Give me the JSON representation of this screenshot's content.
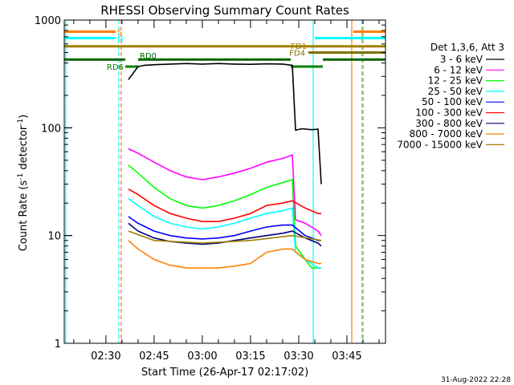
{
  "chart_data": {
    "type": "line",
    "title": "RHESSI Observing Summary Count Rates",
    "xlabel": "Start Time (26-Apr-17 02:17:02)",
    "ylabel_main": "Count Rate (s",
    "ylabel_sup1": "-1",
    "ylabel_mid": " detector",
    "ylabel_sup2": "-1",
    "ylabel_end": ")",
    "yscale": "log",
    "ylim": [
      1,
      1000
    ],
    "xlim": [
      "02:17:02",
      "03:57:00"
    ],
    "xticks": [
      "02:30",
      "02:45",
      "03:00",
      "03:15",
      "03:30",
      "03:45"
    ],
    "yticks": [
      "1",
      "10",
      "100",
      "1000"
    ],
    "legend_title": "Det 1,3,6, Att 3",
    "legend_placement": "right",
    "footer": "31-Aug-2022 22:28",
    "series": [
      {
        "name": "3 - 6 keV",
        "color": "#000000",
        "t": [
          "02:37",
          "02:40",
          "02:42",
          "02:45",
          "02:50",
          "02:55",
          "03:00",
          "03:05",
          "03:10",
          "03:15",
          "03:20",
          "03:25",
          "03:28",
          "03:29",
          "03:31",
          "03:34",
          "03:36",
          "03:37"
        ],
        "values": [
          280,
          370,
          380,
          385,
          390,
          395,
          390,
          395,
          390,
          388,
          392,
          390,
          380,
          95,
          98,
          96,
          97,
          30
        ]
      },
      {
        "name": "6 - 12 keV",
        "color": "#ff00ff",
        "t": [
          "02:37",
          "02:40",
          "02:45",
          "02:50",
          "02:55",
          "03:00",
          "03:05",
          "03:10",
          "03:15",
          "03:20",
          "03:25",
          "03:28",
          "03:29",
          "03:32",
          "03:34",
          "03:36",
          "03:37"
        ],
        "values": [
          64,
          58,
          48,
          40,
          35,
          33,
          35,
          38,
          42,
          48,
          52,
          56,
          14,
          13,
          12,
          11,
          10
        ]
      },
      {
        "name": "12 - 25 keV",
        "color": "#00ff00",
        "t": [
          "02:37",
          "02:40",
          "02:45",
          "02:50",
          "02:55",
          "03:00",
          "03:05",
          "03:10",
          "03:15",
          "03:20",
          "03:25",
          "03:28",
          "03:29",
          "03:32",
          "03:34",
          "03:36",
          "03:37"
        ],
        "values": [
          45,
          38,
          28,
          22,
          19,
          18,
          19,
          21,
          24,
          28,
          31,
          33,
          8,
          6,
          5,
          5,
          5
        ]
      },
      {
        "name": "25 - 50 keV",
        "color": "#00ffff",
        "t": [
          "02:37",
          "02:40",
          "02:45",
          "02:50",
          "02:55",
          "03:00",
          "03:05",
          "03:10",
          "03:15",
          "03:20",
          "03:25",
          "03:28",
          "03:29",
          "03:32",
          "03:34",
          "03:36",
          "03:37"
        ],
        "values": [
          22,
          19,
          15,
          13,
          12,
          11.5,
          12,
          13,
          14.5,
          16,
          17,
          18,
          7,
          6,
          5.5,
          5,
          5
        ]
      },
      {
        "name": "50 - 100 keV",
        "color": "#0000ff",
        "t": [
          "02:37",
          "02:40",
          "02:45",
          "02:50",
          "02:55",
          "03:00",
          "03:05",
          "03:10",
          "03:15",
          "03:20",
          "03:25",
          "03:28",
          "03:32",
          "03:36",
          "03:37"
        ],
        "values": [
          15,
          13,
          11,
          10,
          9.5,
          9.3,
          9.5,
          10,
          11,
          12,
          12.5,
          12.5,
          10,
          9,
          9
        ]
      },
      {
        "name": "100 - 300 keV",
        "color": "#ff0000",
        "t": [
          "02:37",
          "02:40",
          "02:45",
          "02:50",
          "02:55",
          "03:00",
          "03:05",
          "03:10",
          "03:15",
          "03:20",
          "03:25",
          "03:28",
          "03:32",
          "03:36",
          "03:37"
        ],
        "values": [
          27,
          24,
          19,
          16,
          14.5,
          13.5,
          13.5,
          14.5,
          16,
          19,
          20,
          21,
          18,
          16,
          16
        ]
      },
      {
        "name": "300 - 800 keV",
        "color": "#000080",
        "t": [
          "02:37",
          "02:40",
          "02:45",
          "02:50",
          "02:55",
          "03:00",
          "03:05",
          "03:10",
          "03:15",
          "03:20",
          "03:25",
          "03:28",
          "03:32",
          "03:36",
          "03:37"
        ],
        "values": [
          13,
          11,
          9.5,
          8.8,
          8.5,
          8.3,
          8.5,
          9,
          9.5,
          10,
          10.5,
          11,
          9.5,
          8.5,
          8
        ]
      },
      {
        "name": "800 - 7000 keV",
        "color": "#ff8000",
        "t": [
          "02:37",
          "02:40",
          "02:45",
          "02:50",
          "02:55",
          "03:00",
          "03:05",
          "03:10",
          "03:15",
          "03:20",
          "03:25",
          "03:28",
          "03:32",
          "03:36",
          "03:37"
        ],
        "values": [
          9,
          7.5,
          6,
          5.3,
          5,
          5,
          5,
          5.2,
          5.5,
          7,
          7.5,
          7.5,
          6,
          5.5,
          5.5
        ]
      },
      {
        "name": "7000 - 15000 keV",
        "color": "#a08000",
        "t": [
          "02:37",
          "02:45",
          "03:00",
          "03:15",
          "03:28",
          "03:37"
        ],
        "values": [
          11,
          9,
          8.5,
          9,
          10,
          9
        ]
      }
    ],
    "state_bars": [
      {
        "label": "S",
        "color": "#ff8000",
        "segments": [
          [
            "02:17:02",
            "02:33:00",
            780
          ],
          [
            "03:47:00",
            "03:57:00",
            780
          ]
        ]
      },
      {
        "label": "N",
        "color": "#00ffff",
        "segments": [
          [
            "02:17:02",
            "02:33:00",
            680
          ],
          [
            "03:35:00",
            "03:57:00",
            680
          ]
        ]
      },
      {
        "label": "FD1",
        "color": "#a08000",
        "segments": [
          [
            "02:17:02",
            "03:33:00",
            570
          ],
          [
            "03:33:00",
            "03:57:00",
            570
          ]
        ]
      },
      {
        "label": "FD4",
        "color": "#807000",
        "segments": [
          [
            "03:33:00",
            "03:57:00",
            500
          ]
        ]
      },
      {
        "label": "RD0",
        "color": "#006400",
        "segments": [
          [
            "02:17:02",
            "02:36:00",
            430
          ],
          [
            "02:40:00",
            "03:27:30",
            430
          ],
          [
            "03:37:30",
            "03:57:00",
            430
          ]
        ]
      },
      {
        "label": "RD6",
        "color": "#008000",
        "segments": [
          [
            "02:36:00",
            "02:40:00",
            370
          ],
          [
            "03:27:30",
            "03:37:30",
            370
          ]
        ]
      }
    ],
    "vlines": [
      {
        "t": "02:17:30",
        "color": "#00ffff",
        "dashed": false
      },
      {
        "t": "02:34:00",
        "color": "#00ffff",
        "dashed": true
      },
      {
        "t": "02:34:45",
        "color": "#ff8000",
        "dashed": true
      },
      {
        "t": "03:34:30",
        "color": "#00ffff",
        "dashed": false
      },
      {
        "t": "03:46:30",
        "color": "#ff8000",
        "dashed": false
      },
      {
        "t": "03:49:40",
        "color": "#00ffff",
        "dashed": true
      },
      {
        "t": "03:50:00",
        "color": "#ff8000",
        "dashed": true
      }
    ]
  }
}
